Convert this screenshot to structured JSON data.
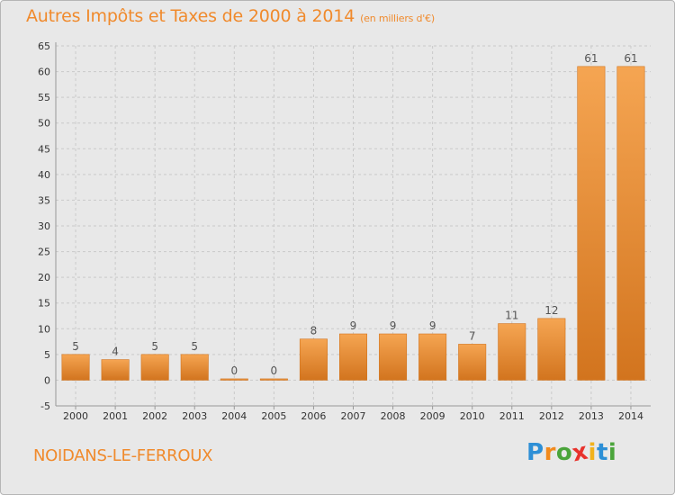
{
  "title": "Autres Impôts et Taxes de 2000 à 2014",
  "unit_label": "(en milliers d'€)",
  "commune": "NOIDANS-LE-FERROUX",
  "logo": {
    "text": "Proxiti",
    "letters": [
      {
        "ch": "P",
        "color": "#2d8fd6"
      },
      {
        "ch": "r",
        "color": "#f28a1c"
      },
      {
        "ch": "o",
        "color": "#4aa43a"
      },
      {
        "ch": "x",
        "color": "#e8322c"
      },
      {
        "ch": "i",
        "color": "#f2b21c"
      },
      {
        "ch": "t",
        "color": "#2d8fd6"
      },
      {
        "ch": "i",
        "color": "#4aa43a"
      }
    ]
  },
  "colors": {
    "accent": "#f08a2c",
    "bar_light": "#f5a552",
    "bar_dark": "#d2741e",
    "grid": "#c9c9c9",
    "plot_bg": "#e8e8e8",
    "axis_text": "#333333",
    "value_text": "#555555"
  },
  "chart_data": {
    "type": "bar",
    "categories": [
      "2000",
      "2001",
      "2002",
      "2003",
      "2004",
      "2005",
      "2006",
      "2007",
      "2008",
      "2009",
      "2010",
      "2011",
      "2012",
      "2013",
      "2014"
    ],
    "values": [
      5,
      4,
      5,
      5,
      0,
      0,
      8,
      9,
      9,
      9,
      7,
      11,
      12,
      61,
      61
    ],
    "value_labels": [
      "5",
      "4",
      "5",
      "5",
      "0",
      "0",
      "8",
      "9",
      "9",
      "9",
      "7",
      "11",
      "12",
      "61",
      "61"
    ],
    "ylim": [
      -5,
      65
    ],
    "yticks": [
      -5,
      0,
      5,
      10,
      15,
      20,
      25,
      30,
      35,
      40,
      45,
      50,
      55,
      60,
      65
    ],
    "grid": true,
    "xlabel": "",
    "ylabel": ""
  }
}
